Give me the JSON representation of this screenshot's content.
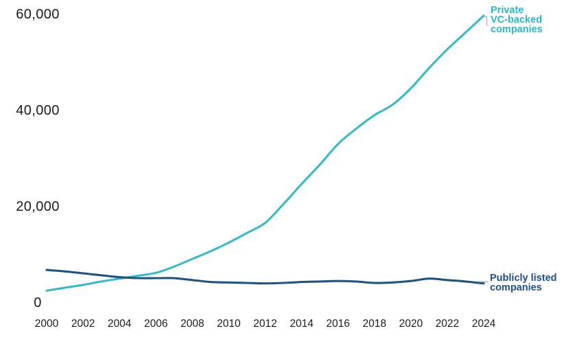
{
  "chart_data": {
    "type": "line",
    "x": [
      2000,
      2001,
      2002,
      2003,
      2004,
      2005,
      2006,
      2007,
      2008,
      2009,
      2010,
      2011,
      2012,
      2013,
      2014,
      2015,
      2016,
      2017,
      2018,
      2019,
      2020,
      2021,
      2022,
      2023,
      2024
    ],
    "series": [
      {
        "name": "Private VC-backed companies",
        "color": "#35bcc6",
        "values": [
          2400,
          3000,
          3600,
          4300,
          4900,
          5500,
          6100,
          7400,
          9000,
          10600,
          12400,
          14400,
          16500,
          20400,
          24600,
          28600,
          32900,
          36100,
          38900,
          41100,
          44500,
          48700,
          52600,
          56100,
          59600
        ]
      },
      {
        "name": "Publicly listed companies",
        "color": "#1f5380",
        "values": [
          6700,
          6400,
          6000,
          5600,
          5200,
          5000,
          5000,
          5000,
          4600,
          4200,
          4100,
          4000,
          3900,
          4000,
          4200,
          4300,
          4400,
          4300,
          4000,
          4100,
          4400,
          4900,
          4600,
          4300,
          3900
        ]
      }
    ],
    "title": "",
    "xlabel": "",
    "ylabel": "",
    "xlim": [
      2000,
      2024
    ],
    "ylim": [
      0,
      60000
    ],
    "x_tick_labels": [
      "2000",
      "2002",
      "2004",
      "2006",
      "2008",
      "2010",
      "2012",
      "2014",
      "2016",
      "2018",
      "2020",
      "2022",
      "2024"
    ],
    "x_tick_values": [
      2000,
      2002,
      2004,
      2006,
      2008,
      2010,
      2012,
      2014,
      2016,
      2018,
      2020,
      2022,
      2024
    ],
    "y_tick_labels": [
      "0",
      "20,000",
      "40,000",
      "60,000"
    ],
    "y_tick_values": [
      0,
      20000,
      40000,
      60000
    ],
    "grid": false,
    "legend_position": "direct line-end labels"
  },
  "annotations": {
    "private_label": "Private\nVC-backed\ncompanies",
    "public_label": "Publicly listed\ncompanies"
  },
  "colors": {
    "private_series": "#35bcc6",
    "public_series": "#1f5380",
    "private_label_text": "#2cb7c4",
    "public_label_text": "#1b4e8c",
    "leader_tick": "#b3b3b3",
    "axis_text": "#1a1a1a",
    "background": "#ffffff"
  }
}
